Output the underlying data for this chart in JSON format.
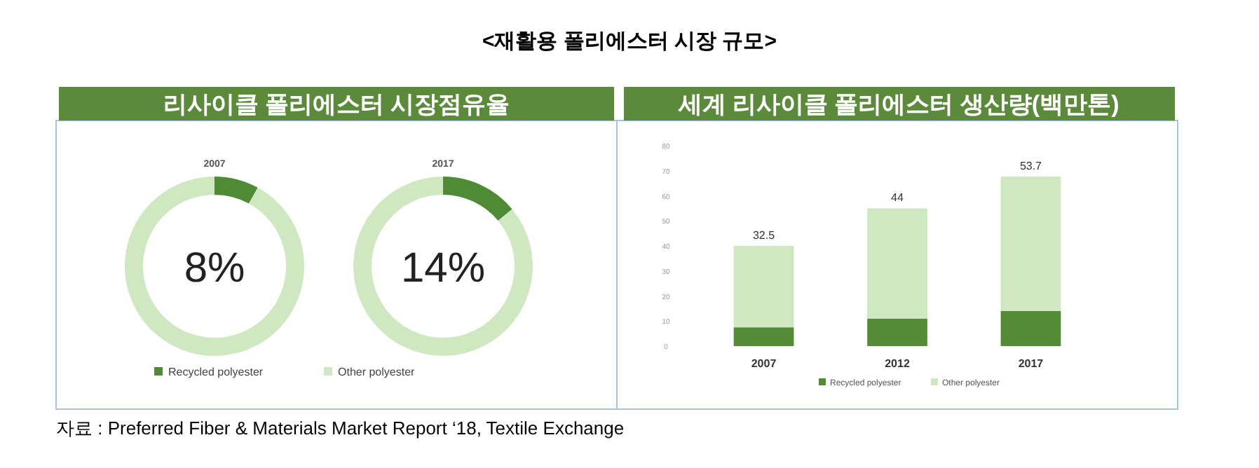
{
  "chart_data": [
    {
      "type": "donut",
      "title": "2007",
      "subtitle": "리사이클 폴리에스터 시장점유율",
      "categories": [
        "Recycled polyester",
        "Other polyester"
      ],
      "values": [
        8,
        92
      ],
      "colors": [
        "#4f8a34",
        "#cfe8c2"
      ],
      "annotations": [
        "8%"
      ],
      "legend": "bottom"
    },
    {
      "type": "donut",
      "title": "2017",
      "categories": [
        null,
        null
      ],
      "values": [
        14,
        86
      ],
      "colors": [
        "#4f8a34",
        "#cfe8c2"
      ],
      "annotations": [
        "14%"
      ]
    },
    {
      "type": "bar",
      "title": "세계 리사이클 폴리에스터 생산량(백만톤)",
      "categories": [
        "2007",
        "2012",
        "2017"
      ],
      "stacked": true,
      "series": [
        {
          "name": "Recycled polyester",
          "color": "#548b36",
          "values": [
            7.5,
            11,
            14
          ]
        },
        {
          "name": "Other polyester",
          "color": "#cfe8c2",
          "values": [
            32.5,
            44,
            53.7
          ],
          "value_labels": [
            "32.5",
            "44",
            "53.7"
          ]
        }
      ],
      "ylim": [
        0,
        80
      ],
      "yticks": [
        0,
        10,
        20,
        30,
        40,
        50,
        60,
        70,
        80
      ],
      "legend": "bottom",
      "annotations": [
        "<재활용 폴리에스터 시장 규모>",
        "자료 : Preferred Fiber & Materials Market Report ‘18, Textile Exchange"
      ]
    }
  ]
}
